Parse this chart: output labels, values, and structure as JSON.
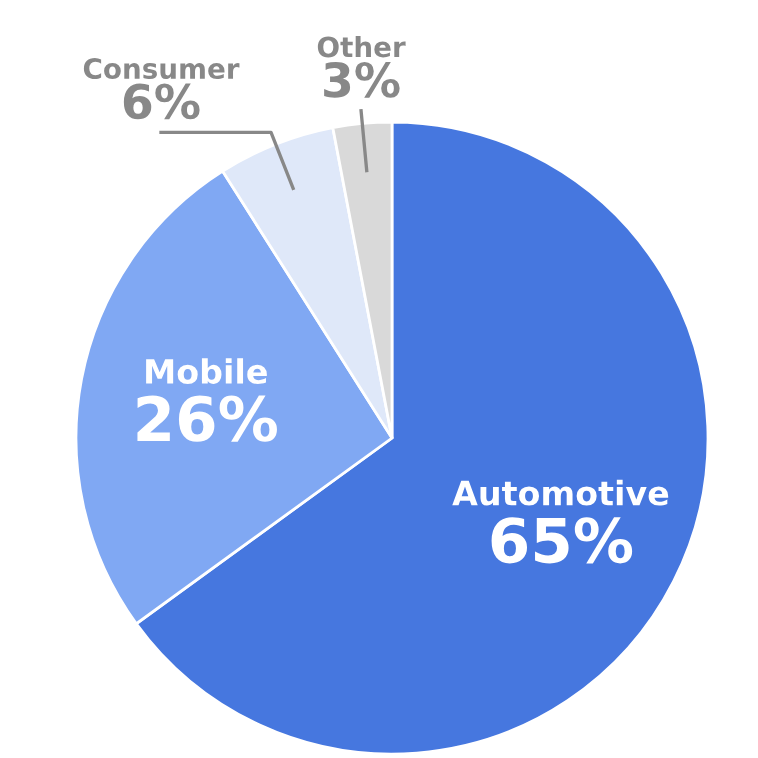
{
  "chart_data": {
    "type": "pie",
    "categories": [
      "Automotive",
      "Mobile",
      "Consumer",
      "Other"
    ],
    "values": [
      65,
      26,
      6,
      3
    ],
    "colors": [
      "#4677df",
      "#80a8f3",
      "#dfe8f9",
      "#d9d9d9"
    ],
    "value_labels": [
      "65%",
      "26%",
      "6%",
      "3%"
    ],
    "legend": false
  }
}
